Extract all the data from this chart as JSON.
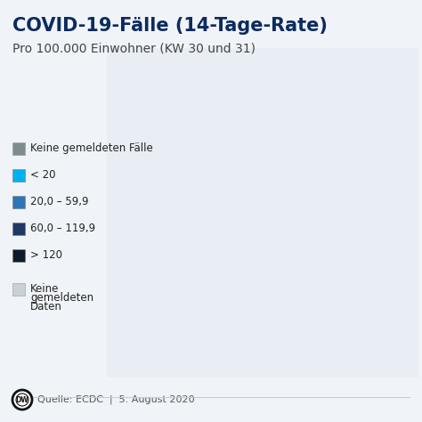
{
  "title": "COVID-19-Fälle (14-Tage-Rate)",
  "subtitle": "Pro 100.000 Einwohner (KW 30 und 31)",
  "source": "Quelle: ECDC  |  5. August 2020",
  "title_color": "#0d2b5e",
  "legend_items": [
    {
      "label": "Keine gemeldeten Fälle",
      "color": "#7f8c8d"
    },
    {
      "label": "< 20",
      "color": "#00b0f0"
    },
    {
      "label": "20,0 – 59,9",
      "color": "#2e75b6"
    },
    {
      "label": "60,0 – 119,9",
      "color": "#1f3864"
    },
    {
      "label": "> 120",
      "color": "#0d1b2e"
    },
    {
      "label": "Keine\ngemeldeten\nDaten",
      "color": "#c8d0d8"
    }
  ],
  "title_fontsize": 15,
  "subtitle_fontsize": 10,
  "source_fontsize": 8,
  "country_colors": {
    "Iceland": "#c8d0d8",
    "Norway": "#00b0f0",
    "Sweden": "#00b0f0",
    "Finland": "#2e75b6",
    "Denmark": "#00b0f0",
    "Estonia": "#2e75b6",
    "Latvia": "#2e75b6",
    "Lithuania": "#2e75b6",
    "Ireland": "#00b0f0",
    "United Kingdom": "#00b0f0",
    "Netherlands": "#2e75b6",
    "Belgium": "#2e75b6",
    "Luxembourg": "#2e75b6",
    "Germany": "#2e75b6",
    "Poland": "#00b0f0",
    "Czech Republic": "#00b0f0",
    "Czechia": "#00b0f0",
    "Slovakia": "#00b0f0",
    "Austria": "#2e75b6",
    "Switzerland": "#2e75b6",
    "France": "#00b0f0",
    "Portugal": "#00b0f0",
    "Spain": "#2e75b6",
    "Italy": "#00b0f0",
    "Slovenia": "#2e75b6",
    "Croatia": "#2e75b6",
    "Hungary": "#00b0f0",
    "Romania": "#2e75b6",
    "Bulgaria": "#2e75b6",
    "Serbia": "#2e75b6",
    "Bosnia and Herz.": "#2e75b6",
    "Bosnia and Herzegovina": "#2e75b6",
    "North Macedonia": "#2e75b6",
    "Montenegro": "#2e75b6",
    "Albania": "#2e75b6",
    "Greece": "#00b0f0",
    "Kosovo": "#2e75b6",
    "Moldova": "#7f8c8d",
    "Belarus": "#7f8c8d",
    "Ukraine": "#c8d0d8",
    "Russia": "#c8d0d8",
    "Turkey": "#c8d0d8",
    "Cyprus": "#00b0f0",
    "Malta": "#00b0f0",
    "Andorra": "#0d1b2e",
    "San Marino": "#0d1b2e",
    "Liechtenstein": "#2e75b6",
    "Monaco": "#2e75b6"
  },
  "map_extent": [
    -25,
    45,
    35,
    73
  ],
  "sea_color": "#e8eef4",
  "land_bg_color": "#c8d0d8"
}
